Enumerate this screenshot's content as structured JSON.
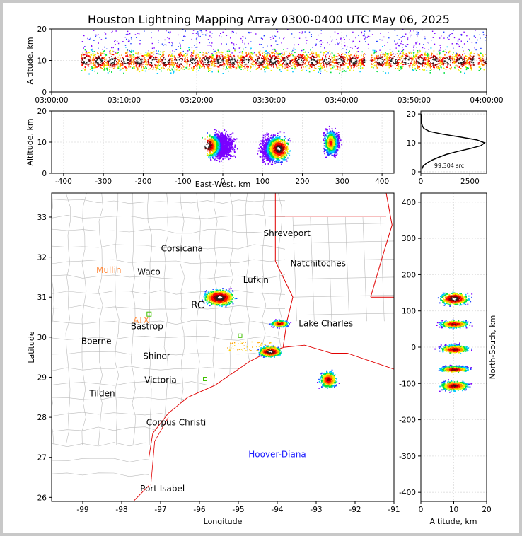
{
  "title": "Houston Lightning Mapping Array 0300-0400 UTC May 06, 2025",
  "colors": {
    "density": [
      "#7a00ff",
      "#2040ff",
      "#00c8ff",
      "#00e040",
      "#f0f000",
      "#ff8c00",
      "#ff0000",
      "#8b0000",
      "#222222",
      "#ffffff"
    ],
    "state_border": "#e00000",
    "county_border": "#bbbbbb",
    "coast": "#e00000",
    "station_orange": "#ff8c40",
    "station_green": "#40c000",
    "hoover_blue": "#1a1aff"
  },
  "chart_data": [
    {
      "id": "time_height",
      "type": "heatmap",
      "ylabel": "Altitude, km",
      "x_ticks": [
        "03:00:00",
        "03:10:00",
        "03:20:00",
        "03:30:00",
        "03:40:00",
        "03:50:00",
        "04:00:00"
      ],
      "x_range_minutes": [
        0,
        60
      ],
      "y_ticks": [
        0,
        10,
        20
      ],
      "ylim": [
        0,
        20
      ],
      "activity_span_minutes": [
        4,
        60
      ],
      "core_altitude_km": [
        6,
        14
      ],
      "gaps_minutes": [
        43.5,
        58.5
      ]
    },
    {
      "id": "east_west_height",
      "type": "heatmap",
      "xlabel": "East-West, km",
      "ylabel": "Altitude, km",
      "x_ticks": [
        -400,
        -300,
        -200,
        -100,
        0,
        100,
        200,
        300,
        400
      ],
      "xlim": [
        -430,
        430
      ],
      "y_ticks": [
        0,
        10,
        20
      ],
      "ylim": [
        0,
        20
      ],
      "clusters": [
        {
          "x_km": [
            -55,
            40
          ],
          "peak_km": -40,
          "peak_alt": 9
        },
        {
          "x_km": [
            80,
            175
          ],
          "peak_km": 140,
          "peak_alt": 8
        },
        {
          "x_km": [
            245,
            300
          ],
          "peak_km": 270,
          "peak_alt": 10
        }
      ]
    },
    {
      "id": "altitude_histogram",
      "type": "line",
      "annotation": "99,304 src",
      "x_ticks": [
        0,
        2500
      ],
      "xlim": [
        0,
        3350
      ],
      "y_ticks": [
        0,
        10,
        20
      ],
      "ylim": [
        -0.5,
        21
      ],
      "profile": [
        [
          1,
          55
        ],
        [
          2,
          120
        ],
        [
          3,
          300
        ],
        [
          4,
          560
        ],
        [
          5,
          900
        ],
        [
          6,
          1300
        ],
        [
          7,
          1850
        ],
        [
          8,
          2500
        ],
        [
          9,
          3050
        ],
        [
          10,
          3250
        ],
        [
          11,
          2850
        ],
        [
          12,
          2000
        ],
        [
          13,
          1100
        ],
        [
          14,
          420
        ],
        [
          15,
          150
        ],
        [
          16,
          70
        ],
        [
          17,
          35
        ],
        [
          18,
          18
        ],
        [
          19,
          10
        ],
        [
          20,
          6
        ]
      ]
    },
    {
      "id": "plan_view",
      "type": "scatter",
      "xlabel": "Longitude",
      "ylabel": "Latitude",
      "x_ticks": [
        -99,
        -98,
        -97,
        -96,
        -95,
        -94,
        -93,
        -92,
        -91
      ],
      "xlim": [
        -99.8,
        -91
      ],
      "y_ticks": [
        26,
        27,
        28,
        29,
        30,
        31,
        32,
        33
      ],
      "ylim": [
        25.9,
        33.6
      ],
      "cities": [
        {
          "name": "Shreveport",
          "lon": -93.75,
          "lat": 32.52
        },
        {
          "name": "Corsicana",
          "lon": -96.45,
          "lat": 32.14
        },
        {
          "name": "Natchitoches",
          "lon": -92.95,
          "lat": 31.77
        },
        {
          "name": "Waco",
          "lon": -97.3,
          "lat": 31.56
        },
        {
          "name": "Lufkin",
          "lon": -94.55,
          "lat": 31.36
        },
        {
          "name": "Bastrop",
          "lon": -97.35,
          "lat": 30.2
        },
        {
          "name": "Lake Charles",
          "lon": -92.75,
          "lat": 30.27
        },
        {
          "name": "Boerne",
          "lon": -98.65,
          "lat": 29.83
        },
        {
          "name": "Shiner",
          "lon": -97.1,
          "lat": 29.46
        },
        {
          "name": "Victoria",
          "lon": -97.0,
          "lat": 28.86
        },
        {
          "name": "Tilden",
          "lon": -98.5,
          "lat": 28.52
        },
        {
          "name": "Corpus Christi",
          "lon": -96.6,
          "lat": 27.8
        },
        {
          "name": "Port Isabel",
          "lon": -96.95,
          "lat": 26.15
        }
      ],
      "stations": [
        {
          "name": "Mullin",
          "lon": -98.33,
          "lat": 31.6,
          "color": "orange"
        },
        {
          "name": "ATX",
          "lon": -97.5,
          "lat": 30.35,
          "color": "orange"
        },
        {
          "name": "RC",
          "lon": -96.05,
          "lat": 30.72,
          "color": "dark"
        },
        {
          "name": "Hoover-Diana",
          "lon": -94.0,
          "lat": 27.0,
          "color": "blue"
        }
      ],
      "storm_cells": [
        {
          "lon": -95.5,
          "lat": 31.0,
          "rx": 0.55,
          "ry": 0.28,
          "core": true
        },
        {
          "lon": -93.95,
          "lat": 30.35,
          "rx": 0.32,
          "ry": 0.12,
          "core": false
        },
        {
          "lon": -94.2,
          "lat": 29.65,
          "rx": 0.4,
          "ry": 0.18,
          "core": true
        },
        {
          "lon": -92.7,
          "lat": 28.95,
          "rx": 0.32,
          "ry": 0.3,
          "core": false
        }
      ]
    },
    {
      "id": "north_south_height",
      "type": "heatmap",
      "xlabel": "Altitude, km",
      "ylabel": "North-South, km",
      "x_ticks": [
        0,
        10,
        20
      ],
      "xlim": [
        0,
        20
      ],
      "y_ticks": [
        -400,
        -300,
        -200,
        -100,
        0,
        100,
        200,
        300,
        400
      ],
      "ylim": [
        -425,
        425
      ],
      "clusters": [
        {
          "y_km": [
            110,
            160
          ],
          "peak_km": 135
        },
        {
          "y_km": [
            50,
            80
          ],
          "peak_km": 65
        },
        {
          "y_km": [
            -20,
            15
          ],
          "peak_km": -5
        },
        {
          "y_km": [
            -70,
            -45
          ],
          "peak_km": -60
        },
        {
          "y_km": [
            -125,
            -85
          ],
          "peak_km": -105
        }
      ]
    }
  ]
}
